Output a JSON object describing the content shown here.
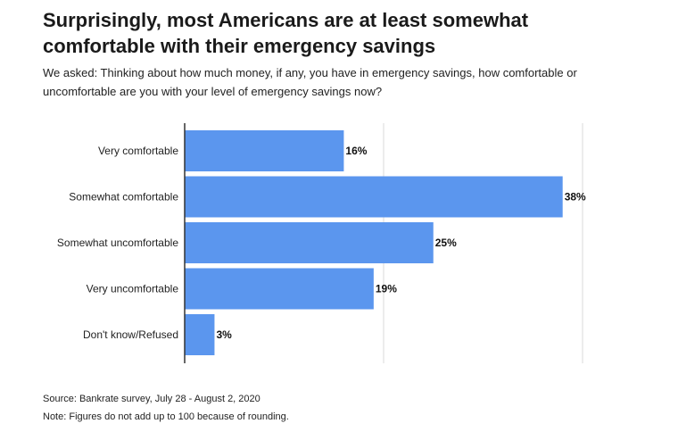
{
  "title": "Surprisingly, most Americans are at least somewhat comfortable with their emergency savings",
  "subtitle": "We asked: Thinking about how much money, if any, you have in emergency savings, how comfortable or uncomfortable are you with your level of emergency savings now?",
  "source": "Source: Bankrate survey, July 28 - August 2, 2020",
  "note": "Note: Figures do not add  up to 100 because of rounding.",
  "chart_data": {
    "type": "bar",
    "orientation": "horizontal",
    "categories": [
      "Very comfortable",
      "Somewhat comfortable",
      "Somewhat uncomfortable",
      "Very uncomfortable",
      "Don't know/Refused"
    ],
    "values": [
      16,
      38,
      25,
      19,
      3
    ],
    "value_labels": [
      "16%",
      "38%",
      "25%",
      "19%",
      "3%"
    ],
    "xlim": [
      0,
      40
    ],
    "grid": true,
    "bar_color": "#5b96ee"
  }
}
